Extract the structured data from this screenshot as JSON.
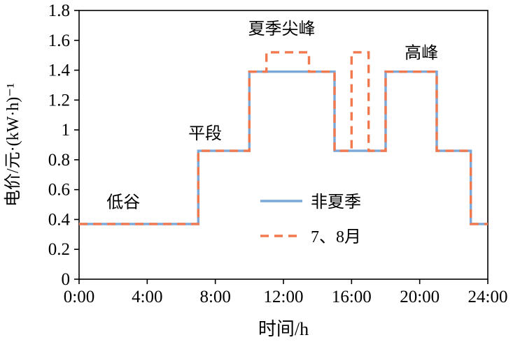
{
  "chart_data": {
    "type": "line",
    "subtype": "step",
    "title": "",
    "xlabel": "时间/h",
    "ylabel": "电价/元·(kW·h)⁻¹",
    "xlim": [
      0,
      24
    ],
    "ylim": [
      0,
      1.8
    ],
    "grid": false,
    "legend_position": "inside-lower-center",
    "x_ticks": [
      0,
      4,
      8,
      12,
      16,
      20,
      24
    ],
    "x_tick_labels": [
      "0:00",
      "4:00",
      "8:00",
      "12:00",
      "16:00",
      "20:00",
      "24:00"
    ],
    "y_ticks": [
      0,
      0.2,
      0.4,
      0.6,
      0.8,
      1,
      1.2,
      1.4,
      1.6,
      1.8
    ],
    "y_tick_labels": [
      "0",
      "0.2",
      "0.4",
      "0.6",
      "0.8",
      "1",
      "1.2",
      "1.4",
      "1.6",
      "1.8"
    ],
    "series": [
      {
        "name": "非夏季",
        "color": "#7ba7d9",
        "style": "solid",
        "points": [
          [
            0,
            0.37
          ],
          [
            7,
            0.37
          ],
          [
            7,
            0.86
          ],
          [
            10,
            0.86
          ],
          [
            10,
            1.39
          ],
          [
            15,
            1.39
          ],
          [
            15,
            0.86
          ],
          [
            18,
            0.86
          ],
          [
            18,
            1.39
          ],
          [
            21,
            1.39
          ],
          [
            21,
            0.86
          ],
          [
            23,
            0.86
          ],
          [
            23,
            0.37
          ],
          [
            24,
            0.37
          ]
        ]
      },
      {
        "name": "7、8月",
        "color": "#f2794d",
        "style": "dashed",
        "points": [
          [
            0,
            0.37
          ],
          [
            7,
            0.37
          ],
          [
            7,
            0.86
          ],
          [
            10,
            0.86
          ],
          [
            10,
            1.39
          ],
          [
            11,
            1.39
          ],
          [
            11,
            1.52
          ],
          [
            13.5,
            1.52
          ],
          [
            13.5,
            1.39
          ],
          [
            15,
            1.39
          ],
          [
            15,
            0.86
          ],
          [
            16,
            0.86
          ],
          [
            16,
            1.52
          ],
          [
            17,
            1.52
          ],
          [
            17,
            0.86
          ],
          [
            18,
            0.86
          ],
          [
            18,
            1.39
          ],
          [
            21,
            1.39
          ],
          [
            21,
            0.86
          ],
          [
            23,
            0.86
          ],
          [
            23,
            0.37
          ],
          [
            24,
            0.37
          ]
        ]
      }
    ],
    "annotations": [
      {
        "text": "低谷",
        "x": 2.6,
        "y": 0.48
      },
      {
        "text": "平段",
        "x": 7.4,
        "y": 0.94
      },
      {
        "text": "夏季尖峰",
        "x": 11.9,
        "y": 1.64
      },
      {
        "text": "高峰",
        "x": 20.1,
        "y": 1.48
      }
    ]
  }
}
